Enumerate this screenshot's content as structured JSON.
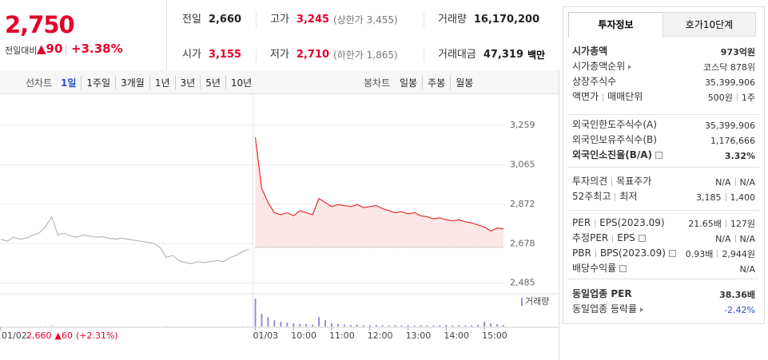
{
  "quote": {
    "price": "2,750",
    "change_label": "전일대비",
    "change": "▲90",
    "rate": "+3.38%",
    "stats": [
      {
        "label": "전일",
        "value": "2,660",
        "color": "#222222"
      },
      {
        "label": "고가",
        "value": "3,245",
        "note": "(상한가 3,455)",
        "color": "#e4002b"
      },
      {
        "label": "거래량",
        "value": "16,170,200",
        "color": "#222222"
      },
      {
        "label": "시가",
        "value": "3,155",
        "color": "#e4002b"
      },
      {
        "label": "저가",
        "value": "2,710",
        "note": "(하한가 1,865)",
        "color": "#e4002b"
      },
      {
        "label": "거래대금",
        "value": "47,319",
        "unit": "백만",
        "color": "#222222"
      }
    ]
  },
  "tabs": {
    "line_label": "선차트",
    "periods": [
      "1일",
      "1주일",
      "3개월",
      "1년",
      "3년",
      "5년",
      "10년"
    ],
    "selected": 0,
    "candle_label": "봉차트",
    "candles": [
      "일봉",
      "주봉",
      "월봉"
    ]
  },
  "prev_summary": {
    "close": "2,660",
    "change": "▲60",
    "rate": "(+2.31%)"
  },
  "info": {
    "tabs": [
      "투자정보",
      "호가10단계"
    ],
    "groups": [
      [
        {
          "label": [
            "시가총액"
          ],
          "value": [
            "973억원"
          ]
        },
        {
          "label": [
            "시가총액순위"
          ],
          "value": [
            "코스닥 878위"
          ]
        },
        {
          "label": [
            "상장주식수"
          ],
          "value": [
            "35,399,906"
          ]
        },
        {
          "label": [
            "액면가",
            "매매단위"
          ],
          "value": [
            "500원",
            "1주"
          ]
        }
      ],
      [
        {
          "label": [
            "외국인한도주식수(A)"
          ],
          "value": [
            "35,399,906"
          ]
        },
        {
          "label": [
            "외국인보유주식수(B)"
          ],
          "value": [
            "1,176,666"
          ]
        },
        {
          "label": [
            "외국인소진율(B/A)"
          ],
          "value": [
            "3.32%"
          ]
        }
      ],
      [
        {
          "label": [
            "투자의견",
            "목표주가"
          ],
          "value": [
            "N/A",
            "N/A"
          ]
        },
        {
          "label": [
            "52주최고",
            "최저"
          ],
          "value": [
            "3,185",
            "1,400"
          ]
        }
      ],
      [
        {
          "label": [
            "PER",
            "EPS(2023.09)"
          ],
          "value": [
            "21.65배",
            "127원"
          ]
        },
        {
          "label": [
            "추정PER",
            "EPS"
          ],
          "value": [
            "N/A",
            "N/A"
          ]
        },
        {
          "label": [
            "PBR",
            "BPS(2023.09)"
          ],
          "value": [
            "0.93배",
            "2,944원"
          ]
        },
        {
          "label": [
            "배당수익률"
          ],
          "value": [
            "N/A"
          ]
        }
      ],
      [
        {
          "label": [
            "동일업종 PER"
          ],
          "value": [
            "38.36배"
          ]
        },
        {
          "label": [
            "동일업종 등락률"
          ],
          "value": [
            "-2.42%"
          ]
        }
      ]
    ]
  },
  "chart_data": [
    {
      "type": "line",
      "categories": [
        "01/02",
        null,
        null,
        null,
        null,
        null,
        null,
        null,
        null,
        null,
        null,
        null,
        null,
        null,
        null,
        null,
        null,
        null,
        null,
        null,
        null,
        null,
        null,
        null,
        null,
        null,
        null,
        null,
        null,
        null,
        null,
        null,
        null,
        null,
        null,
        null,
        null,
        null,
        null,
        null,
        "01/03",
        null,
        null,
        null,
        null,
        null,
        "10:00",
        null,
        null,
        null,
        null,
        null,
        "11:00",
        null,
        null,
        null,
        null,
        null,
        "12:00",
        null,
        null,
        null,
        null,
        null,
        "13:00",
        null,
        null,
        null,
        null,
        null,
        "14:00",
        null,
        null,
        null,
        null,
        null,
        "15:00",
        null,
        null,
        null
      ],
      "series": [
        {
          "color": "#b8b8b8",
          "values": [
            2700,
            2690,
            2710,
            2700,
            2705,
            2720,
            2730,
            2760,
            2810,
            2720,
            2730,
            2715,
            2710,
            2720,
            2715,
            2710,
            2712,
            2705,
            2700,
            2705,
            2700,
            2695,
            2690,
            2685,
            2680,
            2660,
            2610,
            2620,
            2595,
            2585,
            2580,
            2590,
            2585,
            2590,
            2595,
            2590,
            2610,
            2620,
            2640,
            2650,
            null,
            null,
            null,
            null,
            null,
            null,
            null,
            null,
            null,
            null,
            null,
            null,
            null,
            null,
            null,
            null,
            null,
            null,
            null,
            null,
            null,
            null,
            null,
            null,
            null,
            null,
            null,
            null,
            null,
            null,
            null,
            null,
            null,
            null,
            null,
            null,
            null,
            null,
            null,
            null
          ]
        },
        {
          "color": "#e62e2e",
          "fill": "#fde6e6",
          "values": [
            null,
            null,
            null,
            null,
            null,
            null,
            null,
            null,
            null,
            null,
            null,
            null,
            null,
            null,
            null,
            null,
            null,
            null,
            null,
            null,
            null,
            null,
            null,
            null,
            null,
            null,
            null,
            null,
            null,
            null,
            null,
            null,
            null,
            null,
            null,
            null,
            null,
            null,
            null,
            null,
            3200,
            2950,
            2880,
            2830,
            2820,
            2830,
            2815,
            2840,
            2830,
            2820,
            2900,
            2880,
            2860,
            2870,
            2865,
            2860,
            2870,
            2855,
            2860,
            2865,
            2850,
            2840,
            2830,
            2835,
            2825,
            2830,
            2815,
            2810,
            2800,
            2805,
            2795,
            2790,
            2795,
            2785,
            2780,
            2770,
            2760,
            2740,
            2755,
            2750
          ]
        }
      ],
      "baseline": 2660,
      "ylim": [
        2440,
        3400
      ],
      "yticks": [
        {
          "value": 3259,
          "label": "3,259"
        },
        {
          "value": 3065,
          "label": "3,065"
        },
        {
          "value": 2872,
          "label": "2,872"
        },
        {
          "value": 2678,
          "label": "2,678"
        },
        {
          "value": 2485,
          "label": "2,485"
        }
      ],
      "grid": true
    },
    {
      "type": "bar",
      "series": [
        {
          "name": "거래량",
          "color": "#9b8bcc",
          "values": [
            0,
            0,
            1,
            0,
            0,
            1,
            0,
            2,
            3,
            1,
            0,
            0,
            1,
            0,
            0,
            0,
            1,
            0,
            0,
            0,
            0,
            0,
            1,
            0,
            0,
            1,
            2,
            1,
            1,
            0,
            1,
            0,
            0,
            1,
            0,
            0,
            1,
            1,
            2,
            1,
            90,
            40,
            30,
            20,
            15,
            12,
            10,
            8,
            8,
            6,
            30,
            20,
            10,
            8,
            6,
            5,
            6,
            4,
            4,
            5,
            4,
            3,
            4,
            3,
            4,
            3,
            4,
            3,
            3,
            4,
            5,
            3,
            4,
            3,
            4,
            5,
            15,
            10,
            8,
            5
          ]
        }
      ],
      "ylim": [
        0,
        100
      ]
    }
  ]
}
